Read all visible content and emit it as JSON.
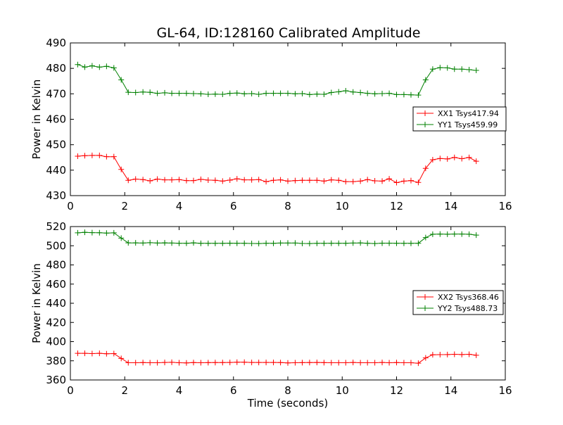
{
  "figure": {
    "title": "GL-64, ID:128160 Calibrated Amplitude"
  },
  "chart_data": [
    {
      "type": "line",
      "title": "GL-64, ID:128160 Calibrated Amplitude",
      "xlabel": "",
      "ylabel": "Power in Kelvin",
      "xlim": [
        0,
        16
      ],
      "ylim": [
        430,
        490
      ],
      "xticks": [
        0,
        2,
        4,
        6,
        8,
        10,
        12,
        14,
        16
      ],
      "yticks": [
        430,
        440,
        450,
        460,
        470,
        480,
        490
      ],
      "grid": false,
      "legend_position": "right",
      "x": [
        0.27,
        0.53,
        0.8,
        1.07,
        1.33,
        1.6,
        1.87,
        2.13,
        2.4,
        2.67,
        2.93,
        3.2,
        3.47,
        3.73,
        4.0,
        4.27,
        4.53,
        4.8,
        5.07,
        5.33,
        5.6,
        5.87,
        6.13,
        6.4,
        6.67,
        6.93,
        7.2,
        7.47,
        7.73,
        8.0,
        8.27,
        8.53,
        8.8,
        9.07,
        9.33,
        9.6,
        9.87,
        10.13,
        10.4,
        10.67,
        10.93,
        11.2,
        11.47,
        11.73,
        12.0,
        12.27,
        12.53,
        12.8,
        13.07,
        13.33,
        13.6,
        13.87,
        14.13,
        14.4,
        14.67,
        14.93
      ],
      "series": [
        {
          "name": "XX1 Tsys417.94",
          "color": "#ff0000",
          "values": [
            445.5,
            445.7,
            445.8,
            445.8,
            445.3,
            445.3,
            440.3,
            436.0,
            436.5,
            436.3,
            435.8,
            436.5,
            436.2,
            436.2,
            436.3,
            435.9,
            435.9,
            436.4,
            436.1,
            436.0,
            435.7,
            436.1,
            436.6,
            436.2,
            436.2,
            436.3,
            435.5,
            436.0,
            436.2,
            435.7,
            435.9,
            436.0,
            436.0,
            436.0,
            435.7,
            436.2,
            436.0,
            435.5,
            435.5,
            435.7,
            436.3,
            435.8,
            435.7,
            436.6,
            435.1,
            435.7,
            435.9,
            435.2,
            440.7,
            444.1,
            444.6,
            444.4,
            445.0,
            444.5,
            445.0,
            443.5
          ]
        },
        {
          "name": "YY1 Tsys459.99",
          "color": "#008000",
          "values": [
            481.5,
            480.5,
            481.0,
            480.5,
            480.8,
            480.2,
            475.5,
            470.6,
            470.5,
            470.7,
            470.6,
            470.2,
            470.4,
            470.2,
            470.2,
            470.2,
            470.1,
            470.0,
            469.8,
            469.9,
            469.8,
            470.2,
            470.3,
            470.0,
            470.1,
            469.8,
            470.2,
            470.2,
            470.2,
            470.2,
            470.0,
            470.1,
            469.7,
            469.9,
            469.8,
            470.5,
            470.8,
            471.2,
            470.7,
            470.5,
            470.2,
            470.0,
            470.1,
            470.2,
            469.7,
            469.7,
            469.6,
            469.5,
            475.5,
            479.7,
            480.3,
            480.2,
            479.7,
            479.7,
            479.5,
            479.2
          ]
        }
      ]
    },
    {
      "type": "line",
      "title": "",
      "xlabel": "Time (seconds)",
      "ylabel": "Power in Kelvin",
      "xlim": [
        0,
        16
      ],
      "ylim": [
        360,
        520
      ],
      "xticks": [
        0,
        2,
        4,
        6,
        8,
        10,
        12,
        14,
        16
      ],
      "yticks": [
        360,
        380,
        400,
        420,
        440,
        460,
        480,
        500,
        520
      ],
      "grid": false,
      "legend_position": "right",
      "x": [
        0.27,
        0.53,
        0.8,
        1.07,
        1.33,
        1.6,
        1.87,
        2.13,
        2.4,
        2.67,
        2.93,
        3.2,
        3.47,
        3.73,
        4.0,
        4.27,
        4.53,
        4.8,
        5.07,
        5.33,
        5.6,
        5.87,
        6.13,
        6.4,
        6.67,
        6.93,
        7.2,
        7.47,
        7.73,
        8.0,
        8.27,
        8.53,
        8.8,
        9.07,
        9.33,
        9.6,
        9.87,
        10.13,
        10.4,
        10.67,
        10.93,
        11.2,
        11.47,
        11.73,
        12.0,
        12.27,
        12.53,
        12.8,
        13.07,
        13.33,
        13.6,
        13.87,
        14.13,
        14.4,
        14.67,
        14.93
      ],
      "series": [
        {
          "name": "XX2 Tsys368.46",
          "color": "#ff0000",
          "values": [
            387.8,
            387.8,
            387.5,
            387.8,
            387.3,
            387.5,
            382.5,
            378.0,
            378.0,
            378.2,
            378.0,
            378.0,
            378.3,
            378.4,
            378.0,
            377.8,
            378.2,
            378.0,
            378.1,
            378.2,
            378.2,
            378.3,
            378.5,
            378.5,
            378.3,
            378.3,
            378.3,
            378.3,
            378.2,
            377.8,
            378.0,
            378.1,
            378.2,
            378.3,
            378.1,
            378.0,
            378.0,
            378.0,
            378.3,
            378.0,
            378.0,
            378.0,
            378.3,
            378.0,
            378.2,
            378.0,
            378.0,
            377.5,
            383.0,
            386.3,
            386.4,
            386.5,
            386.8,
            386.5,
            386.8,
            385.8
          ]
        },
        {
          "name": "YY2 Tsys488.73",
          "color": "#008000",
          "values": [
            513.5,
            514.0,
            513.7,
            513.6,
            513.2,
            513.5,
            508.0,
            503.0,
            503.0,
            502.8,
            503.2,
            502.8,
            503.0,
            502.8,
            502.6,
            502.6,
            503.0,
            502.5,
            502.5,
            502.5,
            502.5,
            502.7,
            502.6,
            502.6,
            502.4,
            502.3,
            502.6,
            502.5,
            502.8,
            502.8,
            502.8,
            502.4,
            502.3,
            502.5,
            502.5,
            502.6,
            502.6,
            502.6,
            502.8,
            502.9,
            502.6,
            502.3,
            502.7,
            502.7,
            502.6,
            502.5,
            502.5,
            502.6,
            508.5,
            512.0,
            512.2,
            512.0,
            512.2,
            512.2,
            512.0,
            511.1
          ]
        }
      ]
    }
  ]
}
